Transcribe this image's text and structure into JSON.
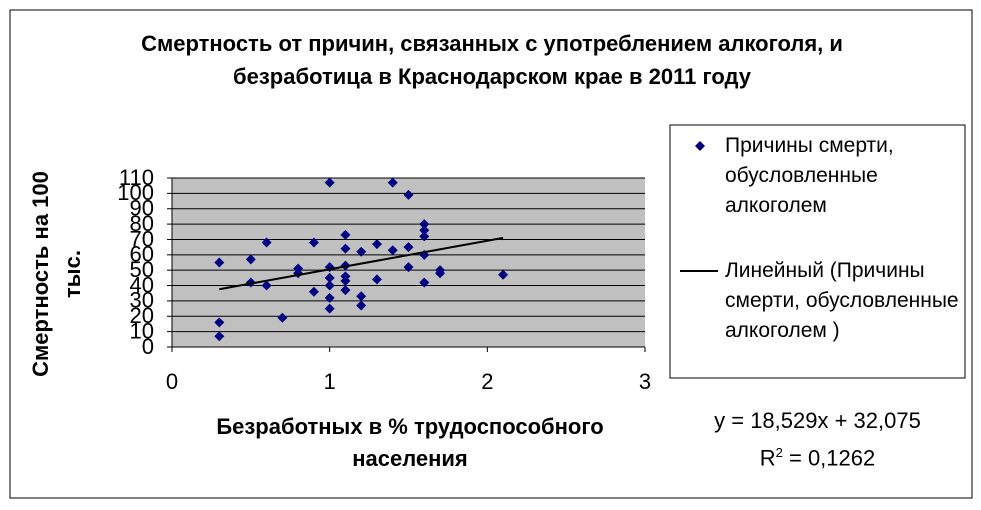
{
  "chart_data": {
    "type": "scatter",
    "title": "Смертность от причин, связанных с употреблением алкоголя, и безработица в Краснодарском крае в 2011 году",
    "x_label": "Безработных в % трудоспособного населения",
    "y_label": "Смертность на 100 тыс.",
    "xlim": [
      0,
      3
    ],
    "xticks": [
      0,
      1,
      2,
      3
    ],
    "ylim": [
      0,
      110
    ],
    "yticks": [
      0,
      10,
      20,
      30,
      40,
      50,
      60,
      70,
      80,
      90,
      100,
      110
    ],
    "grid": true,
    "legend": "right",
    "series": [
      {
        "name": "Причины смерти, обусловленные алкоголем",
        "color": "#000080",
        "marker": "diamond",
        "x": [
          1.0,
          1.4,
          1.5,
          1.6,
          1.6,
          1.6,
          1.1,
          0.6,
          0.9,
          1.3,
          1.4,
          1.5,
          1.1,
          1.2,
          1.6,
          0.5,
          0.3,
          1.0,
          1.1,
          1.5,
          0.8,
          1.7,
          1.7,
          2.1,
          0.8,
          1.1,
          1.1,
          1.0,
          1.3,
          0.5,
          1.6,
          0.6,
          1.0,
          1.1,
          0.9,
          1.2,
          1.2,
          1.0,
          1.0,
          0.7,
          0.3,
          0.3
        ],
        "values": [
          107,
          107,
          99,
          80,
          76,
          72,
          73,
          68,
          68,
          67,
          63,
          65,
          64,
          62,
          60,
          57,
          55,
          52,
          53,
          52,
          51,
          50,
          48,
          47,
          48,
          46,
          43,
          45,
          44,
          42,
          42,
          40,
          40,
          37,
          36,
          33,
          27,
          32,
          25,
          19,
          16,
          7
        ]
      },
      {
        "name": "Линейный (Причины смерти, обусловленные алкоголем )",
        "color": "#000000",
        "marker": "line",
        "x": [
          0.3,
          2.1
        ],
        "values": [
          37.6,
          71.0
        ]
      }
    ],
    "equation": "y = 18,529x + 32,075",
    "r_squared": {
      "prefix": "R",
      "superscript": "2",
      "suffix": " = 0,1262"
    }
  }
}
